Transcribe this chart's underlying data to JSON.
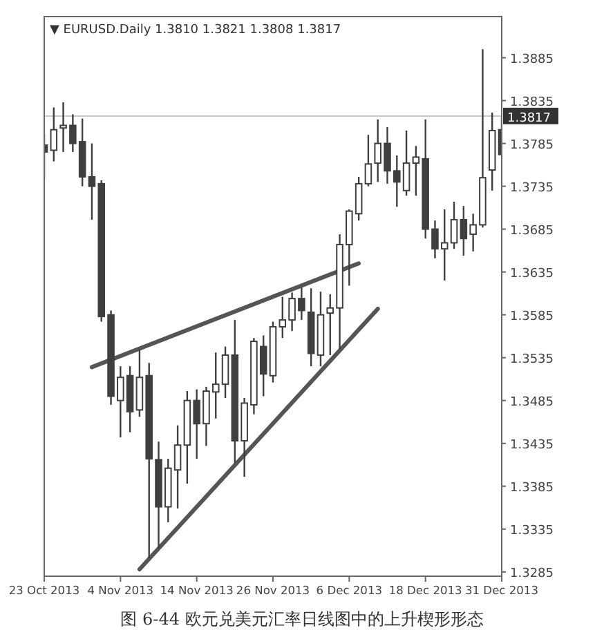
{
  "chart_data": {
    "type": "candlestick",
    "title": "图 6-44   欧元兑美元汇率日线图中的上升楔形形态",
    "annotations": [
      "▼ EURUSD.Daily  1.3810 1.3821 1.3808 1.3817"
    ],
    "categories": [
      "23 Oct 2013",
      null,
      null,
      null,
      null,
      null,
      null,
      null,
      "4 Nov 2013",
      null,
      null,
      null,
      null,
      null,
      null,
      null,
      "14 Nov 2013",
      null,
      null,
      null,
      null,
      null,
      null,
      null,
      "26 Nov 2013",
      null,
      null,
      null,
      null,
      null,
      null,
      null,
      "6 Dec 2013",
      null,
      null,
      null,
      null,
      null,
      null,
      null,
      "18 Dec 2013",
      null,
      null,
      null,
      null,
      null,
      null,
      null,
      "31 Dec 2013"
    ],
    "ylim": [
      1.328,
      1.3933
    ],
    "yticks": [
      1.3285,
      1.3335,
      1.3385,
      1.3435,
      1.3485,
      1.3535,
      1.3585,
      1.3635,
      1.3685,
      1.3735,
      1.3785,
      1.3835,
      1.3885
    ],
    "grid": false,
    "ref_lines": [
      {
        "axis": "y",
        "value": 1.3817,
        "label": "1.3817",
        "color": "#c8c8c8"
      }
    ],
    "series": [
      {
        "type": "candlestick",
        "color": "#3f3f3f",
        "ohlc": [
          [
            1.3783,
            1.3796,
            1.3743,
            1.3775
          ],
          [
            1.3777,
            1.3827,
            1.3764,
            1.3801
          ],
          [
            1.3803,
            1.3833,
            1.3775,
            1.3806
          ],
          [
            1.3806,
            1.3819,
            1.3775,
            1.3785
          ],
          [
            1.3787,
            1.3814,
            1.3735,
            1.3746
          ],
          [
            1.3746,
            1.3785,
            1.3696,
            1.3735
          ],
          [
            1.3738,
            1.3742,
            1.3577,
            1.3583
          ],
          [
            1.3585,
            1.359,
            1.348,
            1.349
          ],
          [
            1.3485,
            1.3525,
            1.3442,
            1.3512
          ],
          [
            1.3514,
            1.3525,
            1.3448,
            1.3472
          ],
          [
            1.3474,
            1.3545,
            1.3466,
            1.3512
          ],
          [
            1.3514,
            1.3529,
            1.3301,
            1.3417
          ],
          [
            1.3416,
            1.3437,
            1.3312,
            1.3361
          ],
          [
            1.3361,
            1.3417,
            1.3343,
            1.3406
          ],
          [
            1.3404,
            1.3456,
            1.3359,
            1.3433
          ],
          [
            1.3433,
            1.3496,
            1.3388,
            1.3485
          ],
          [
            1.3485,
            1.3498,
            1.3417,
            1.3458
          ],
          [
            1.3458,
            1.3501,
            1.3432,
            1.3496
          ],
          [
            1.3495,
            1.3541,
            1.3464,
            1.3504
          ],
          [
            1.3504,
            1.3548,
            1.3488,
            1.3538
          ],
          [
            1.3538,
            1.3579,
            1.3412,
            1.3438
          ],
          [
            1.3438,
            1.3488,
            1.3396,
            1.3482
          ],
          [
            1.348,
            1.3558,
            1.3469,
            1.3554
          ],
          [
            1.3548,
            1.3561,
            1.349,
            1.3516
          ],
          [
            1.3514,
            1.3577,
            1.3506,
            1.3571
          ],
          [
            1.3571,
            1.3606,
            1.3558,
            1.3579
          ],
          [
            1.3579,
            1.3611,
            1.3566,
            1.3604
          ],
          [
            1.3604,
            1.3617,
            1.3579,
            1.359
          ],
          [
            1.3588,
            1.3616,
            1.3525,
            1.354
          ],
          [
            1.3538,
            1.3612,
            1.3525,
            1.3585
          ],
          [
            1.3587,
            1.3609,
            1.3538,
            1.3593
          ],
          [
            1.3593,
            1.3679,
            1.3545,
            1.3667
          ],
          [
            1.3667,
            1.3708,
            1.3619,
            1.3706
          ],
          [
            1.3703,
            1.3746,
            1.3695,
            1.3738
          ],
          [
            1.3738,
            1.3795,
            1.3735,
            1.3761
          ],
          [
            1.3762,
            1.3813,
            1.374,
            1.3785
          ],
          [
            1.3785,
            1.3804,
            1.3738,
            1.3753
          ],
          [
            1.3753,
            1.3771,
            1.3711,
            1.374
          ],
          [
            1.373,
            1.38,
            1.3724,
            1.3762
          ],
          [
            1.3762,
            1.3782,
            1.3724,
            1.3769
          ],
          [
            1.3767,
            1.3813,
            1.3674,
            1.3685
          ],
          [
            1.3685,
            1.3695,
            1.3651,
            1.3662
          ],
          [
            1.3662,
            1.3708,
            1.3625,
            1.3669
          ],
          [
            1.3669,
            1.3717,
            1.3662,
            1.3696
          ],
          [
            1.3696,
            1.3712,
            1.3654,
            1.3674
          ],
          [
            1.3679,
            1.3703,
            1.3659,
            1.369
          ],
          [
            1.369,
            1.3895,
            1.3687,
            1.3745
          ],
          [
            1.3754,
            1.3821,
            1.373,
            1.38
          ],
          [
            1.3801,
            1.3816,
            1.3771,
            1.3772
          ]
        ]
      },
      {
        "type": "line",
        "color": "#555555",
        "values": [
          null,
          null,
          null,
          null,
          null,
          1.3524,
          null,
          null,
          null,
          null,
          null,
          null,
          null,
          null,
          null,
          null,
          null,
          null,
          null,
          null,
          null,
          null,
          null,
          null,
          null,
          null,
          null,
          null,
          null,
          null,
          null,
          null,
          null,
          1.3645,
          null,
          null,
          null,
          null,
          null,
          null,
          null,
          null,
          null,
          null,
          null,
          null,
          null,
          null,
          null
        ]
      },
      {
        "type": "line",
        "color": "#555555",
        "values": [
          null,
          null,
          null,
          null,
          null,
          null,
          null,
          null,
          null,
          null,
          1.3288,
          null,
          null,
          null,
          null,
          null,
          null,
          null,
          null,
          null,
          null,
          null,
          null,
          null,
          null,
          null,
          null,
          null,
          null,
          null,
          null,
          null,
          null,
          null,
          null,
          1.3592,
          null,
          null,
          null,
          null,
          null,
          null,
          null,
          null,
          null,
          null,
          null,
          null,
          null
        ]
      }
    ]
  }
}
